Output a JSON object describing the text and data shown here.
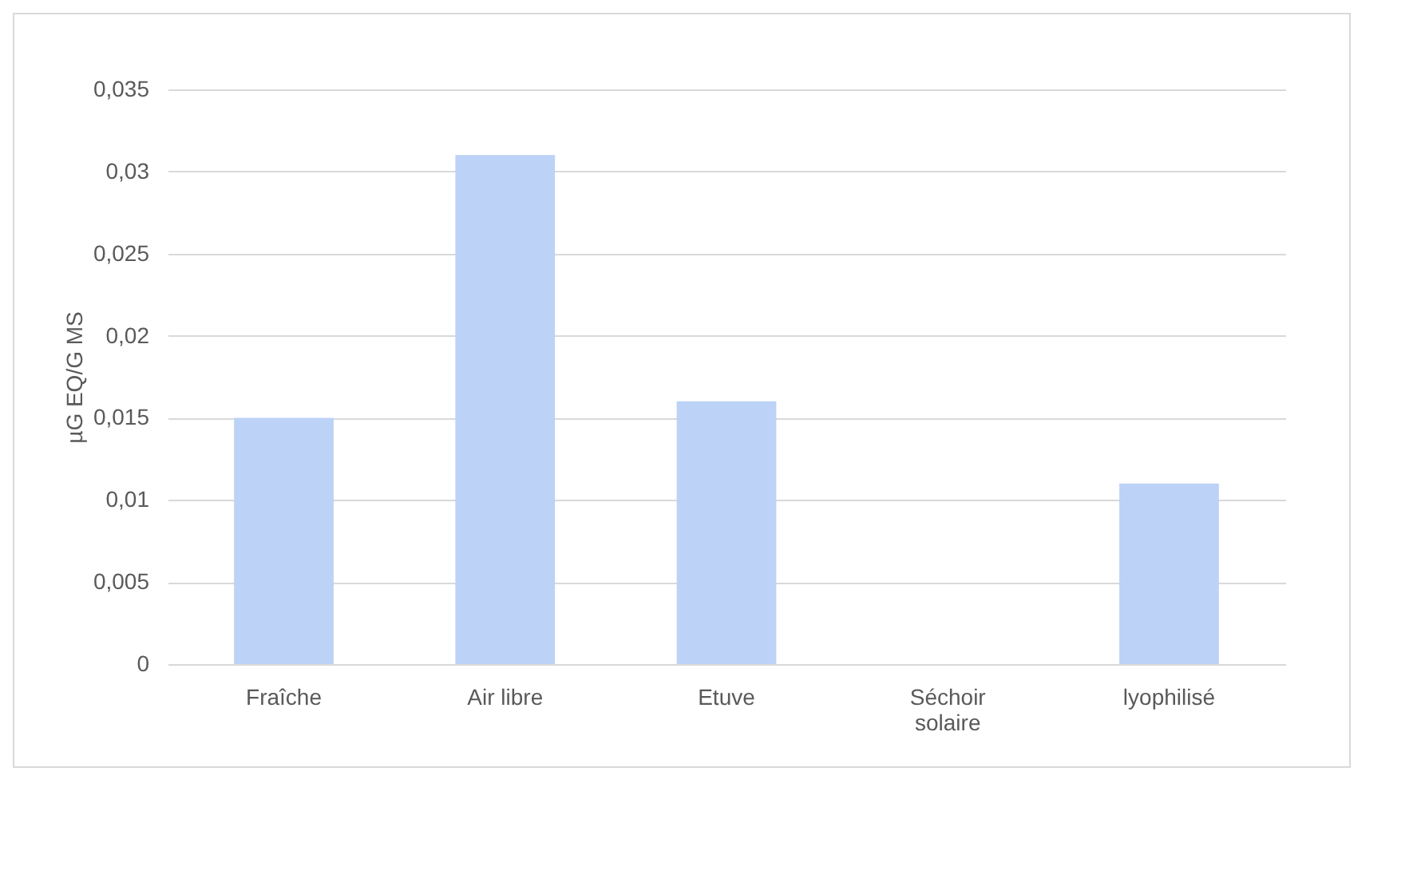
{
  "chart_data": {
    "type": "bar",
    "ylabel": "µG EQ/G MS",
    "categories": [
      "Fraîche",
      "Air libre",
      "Etuve",
      "Séchoir\nsolaire",
      "lyophilisé"
    ],
    "values": [
      0.015,
      0.031,
      0.016,
      0,
      0.011
    ],
    "color": "#bcd2f7",
    "ylim": [
      0,
      0.035
    ],
    "yticks": [
      {
        "value": 0,
        "label": "0"
      },
      {
        "value": 0.005,
        "label": "0,005"
      },
      {
        "value": 0.01,
        "label": "0,01"
      },
      {
        "value": 0.015,
        "label": "0,015"
      },
      {
        "value": 0.02,
        "label": "0,02"
      },
      {
        "value": 0.025,
        "label": "0,025"
      },
      {
        "value": 0.03,
        "label": "0,03"
      },
      {
        "value": 0.035,
        "label": "0,035"
      }
    ],
    "grid": "y"
  }
}
